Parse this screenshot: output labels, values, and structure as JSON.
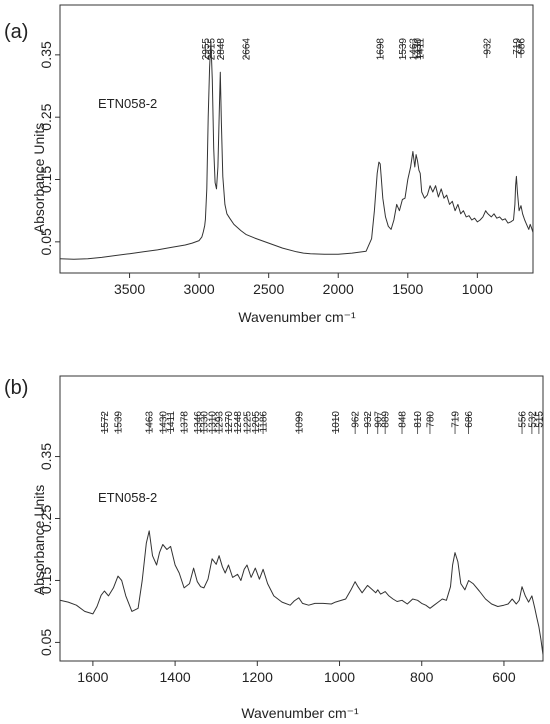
{
  "chart_data": [
    {
      "panel_label": "(a)",
      "type": "line",
      "sample_label": "ETN058-2",
      "xlabel": "Wavenumber cm⁻¹",
      "ylabel": "Absorbance Units",
      "xlim": [
        4000,
        600
      ],
      "ylim": [
        0.0,
        0.43
      ],
      "x_reversed": true,
      "grid": false,
      "x_ticks": [
        3500,
        3000,
        2500,
        2000,
        1500,
        1000
      ],
      "y_ticks": [
        0.05,
        0.15,
        0.25,
        0.35
      ],
      "y_tick_labels": [
        "0.05",
        "0.15",
        "0.25",
        "0.35"
      ],
      "x_tick_labels": [
        "3500",
        "3000",
        "2500",
        "2000",
        "1500",
        "1000"
      ],
      "peak_labels": [
        "2955",
        "2915",
        "2848",
        "2664",
        "1698",
        "1539",
        "1463",
        "1430",
        "1411",
        "932",
        "719",
        "686"
      ],
      "peak_positions": [
        2955,
        2915,
        2848,
        2664,
        1698,
        1539,
        1463,
        1430,
        1411,
        932,
        719,
        686
      ],
      "series": [
        {
          "x": [
            4000,
            3900,
            3800,
            3700,
            3600,
            3500,
            3400,
            3300,
            3200,
            3100,
            3050,
            3000,
            2980,
            2970,
            2960,
            2955,
            2945,
            2935,
            2925,
            2915,
            2905,
            2895,
            2885,
            2875,
            2865,
            2855,
            2848,
            2840,
            2830,
            2815,
            2800,
            2780,
            2750,
            2700,
            2664,
            2600,
            2500,
            2400,
            2300,
            2250,
            2200,
            2100,
            2000,
            1900,
            1800,
            1760,
            1740,
            1720,
            1708,
            1698,
            1690,
            1680,
            1660,
            1640,
            1620,
            1600,
            1580,
            1560,
            1539,
            1520,
            1500,
            1480,
            1463,
            1450,
            1440,
            1430,
            1420,
            1411,
            1400,
            1380,
            1360,
            1340,
            1320,
            1300,
            1280,
            1260,
            1240,
            1220,
            1200,
            1180,
            1160,
            1140,
            1120,
            1100,
            1080,
            1060,
            1040,
            1020,
            1000,
            980,
            960,
            940,
            932,
            920,
            900,
            880,
            860,
            840,
            820,
            800,
            780,
            760,
            740,
            730,
            725,
            719,
            712,
            700,
            686,
            675,
            660,
            650,
            640,
            630,
            620,
            610,
            600
          ],
          "y": [
            0.023,
            0.022,
            0.023,
            0.025,
            0.028,
            0.031,
            0.034,
            0.037,
            0.041,
            0.045,
            0.048,
            0.052,
            0.058,
            0.066,
            0.076,
            0.086,
            0.135,
            0.25,
            0.33,
            0.372,
            0.31,
            0.2,
            0.145,
            0.135,
            0.17,
            0.26,
            0.322,
            0.24,
            0.155,
            0.11,
            0.095,
            0.088,
            0.078,
            0.068,
            0.062,
            0.056,
            0.048,
            0.04,
            0.034,
            0.032,
            0.031,
            0.03,
            0.03,
            0.032,
            0.035,
            0.055,
            0.1,
            0.16,
            0.178,
            0.175,
            0.15,
            0.12,
            0.09,
            0.075,
            0.07,
            0.085,
            0.11,
            0.1,
            0.118,
            0.12,
            0.15,
            0.17,
            0.195,
            0.17,
            0.19,
            0.18,
            0.165,
            0.16,
            0.13,
            0.12,
            0.125,
            0.14,
            0.13,
            0.14,
            0.122,
            0.135,
            0.12,
            0.125,
            0.11,
            0.115,
            0.1,
            0.11,
            0.095,
            0.1,
            0.09,
            0.092,
            0.085,
            0.088,
            0.082,
            0.085,
            0.09,
            0.1,
            0.097,
            0.094,
            0.09,
            0.095,
            0.088,
            0.09,
            0.085,
            0.087,
            0.08,
            0.082,
            0.085,
            0.11,
            0.14,
            0.155,
            0.13,
            0.1,
            0.108,
            0.095,
            0.085,
            0.08,
            0.075,
            0.07,
            0.078,
            0.072,
            0.065
          ]
        }
      ]
    },
    {
      "panel_label": "(b)",
      "type": "line",
      "sample_label": "ETN058-2",
      "xlabel": "Wavenumber cm⁻¹",
      "ylabel": "Absorbance Units",
      "xlim": [
        1680,
        505
      ],
      "ylim": [
        0.02,
        0.48
      ],
      "x_reversed": true,
      "grid": false,
      "x_ticks": [
        1600,
        1400,
        1200,
        1000,
        800,
        600
      ],
      "y_ticks": [
        0.05,
        0.15,
        0.25,
        0.35
      ],
      "y_tick_labels": [
        "0.05",
        "0.15",
        "0.25",
        "0.35"
      ],
      "x_tick_labels": [
        "1600",
        "1400",
        "1200",
        "1000",
        "800",
        "600"
      ],
      "peak_labels": [
        "1572",
        "1539",
        "1463",
        "1430",
        "1411",
        "1378",
        "1346",
        "1330",
        "1310",
        "1293",
        "1270",
        "1248",
        "1225",
        "1205",
        "1186",
        "1099",
        "1010",
        "962",
        "932",
        "907",
        "889",
        "848",
        "810",
        "780",
        "719",
        "686",
        "556",
        "532",
        "515"
      ],
      "peak_positions": [
        1572,
        1539,
        1463,
        1430,
        1411,
        1378,
        1346,
        1330,
        1310,
        1293,
        1270,
        1248,
        1225,
        1205,
        1186,
        1099,
        1010,
        962,
        932,
        907,
        889,
        848,
        810,
        780,
        719,
        686,
        556,
        532,
        515
      ],
      "series": [
        {
          "x": [
            1680,
            1660,
            1640,
            1620,
            1600,
            1590,
            1580,
            1572,
            1562,
            1550,
            1539,
            1530,
            1520,
            1505,
            1490,
            1480,
            1470,
            1463,
            1455,
            1445,
            1438,
            1430,
            1420,
            1411,
            1400,
            1390,
            1378,
            1365,
            1355,
            1346,
            1338,
            1330,
            1320,
            1310,
            1300,
            1293,
            1285,
            1278,
            1270,
            1260,
            1248,
            1240,
            1232,
            1225,
            1215,
            1205,
            1195,
            1186,
            1175,
            1160,
            1140,
            1120,
            1110,
            1099,
            1090,
            1075,
            1060,
            1040,
            1020,
            1010,
            1000,
            985,
            972,
            962,
            955,
            945,
            932,
            920,
            912,
            907,
            900,
            889,
            880,
            870,
            860,
            848,
            835,
            822,
            810,
            800,
            790,
            780,
            770,
            760,
            750,
            740,
            730,
            725,
            719,
            712,
            705,
            695,
            686,
            675,
            660,
            645,
            630,
            615,
            600,
            590,
            580,
            570,
            563,
            556,
            548,
            540,
            532,
            525,
            520,
            515,
            510,
            505
          ],
          "y": [
            0.118,
            0.115,
            0.11,
            0.1,
            0.096,
            0.108,
            0.126,
            0.133,
            0.125,
            0.138,
            0.157,
            0.15,
            0.125,
            0.1,
            0.105,
            0.15,
            0.21,
            0.23,
            0.19,
            0.175,
            0.195,
            0.208,
            0.2,
            0.205,
            0.175,
            0.162,
            0.138,
            0.145,
            0.17,
            0.148,
            0.14,
            0.138,
            0.152,
            0.185,
            0.176,
            0.19,
            0.172,
            0.162,
            0.175,
            0.155,
            0.16,
            0.15,
            0.168,
            0.175,
            0.155,
            0.17,
            0.152,
            0.168,
            0.145,
            0.125,
            0.115,
            0.11,
            0.117,
            0.122,
            0.113,
            0.11,
            0.113,
            0.113,
            0.112,
            0.115,
            0.117,
            0.12,
            0.135,
            0.148,
            0.14,
            0.13,
            0.142,
            0.135,
            0.13,
            0.135,
            0.128,
            0.132,
            0.125,
            0.12,
            0.116,
            0.118,
            0.112,
            0.12,
            0.118,
            0.113,
            0.11,
            0.105,
            0.11,
            0.115,
            0.12,
            0.118,
            0.14,
            0.175,
            0.195,
            0.18,
            0.145,
            0.135,
            0.15,
            0.145,
            0.133,
            0.12,
            0.112,
            0.108,
            0.11,
            0.112,
            0.12,
            0.112,
            0.118,
            0.14,
            0.125,
            0.115,
            0.125,
            0.105,
            0.09,
            0.075,
            0.055,
            0.03
          ]
        }
      ]
    }
  ]
}
